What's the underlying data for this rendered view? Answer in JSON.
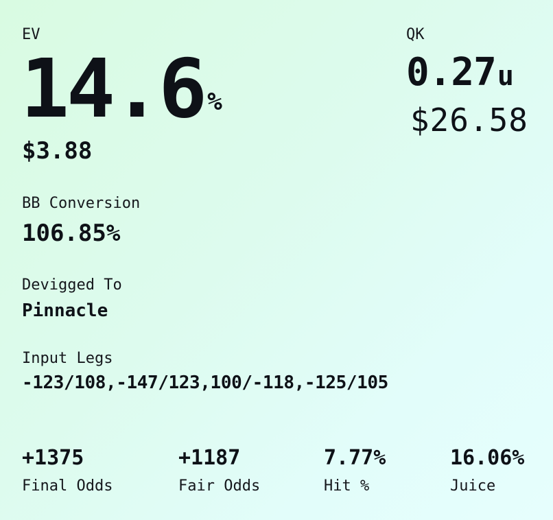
{
  "ev": {
    "label": "EV",
    "percent": "14.6",
    "percent_unit": "%",
    "dollars": "$3.88"
  },
  "qk": {
    "label": "QK",
    "units": "0.27",
    "units_suffix": "u",
    "dollars": "$26.58"
  },
  "bb_conversion": {
    "label": "BB Conversion",
    "value": "106.85%"
  },
  "devigged": {
    "label": "Devigged To",
    "value": "Pinnacle"
  },
  "input_legs": {
    "label": "Input Legs",
    "value": "-123/108,-147/123,100/-118,-125/105"
  },
  "stats": {
    "final_odds": {
      "value": "+1375",
      "label": "Final Odds"
    },
    "fair_odds": {
      "value": "+1187",
      "label": "Fair Odds"
    },
    "hit": {
      "value": "7.77%",
      "label": "Hit %"
    },
    "juice": {
      "value": "16.06%",
      "label": "Juice"
    }
  },
  "colors": {
    "text": "#0e1117",
    "background_start": "#d9fbe2",
    "background_end": "#e6fefd"
  }
}
